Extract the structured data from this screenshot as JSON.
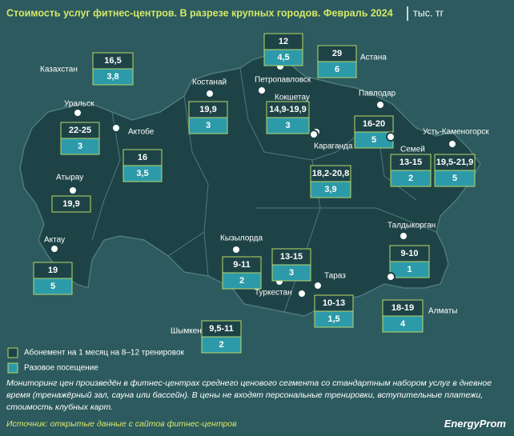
{
  "title": "Стоимость услуг фитнес-центров. В разрезе крупных городов. Февраль 2024",
  "unit": "тыс. тг",
  "cities": [
    {
      "name": "Казахстан",
      "monthly": "16,5",
      "single": "3,8"
    },
    {
      "name": "Петропавловск",
      "monthly": "12",
      "single": "4,5"
    },
    {
      "name": "Астана",
      "monthly": "29",
      "single": "6"
    },
    {
      "name": "Костанай",
      "monthly": "19,9",
      "single": "3"
    },
    {
      "name": "Кокшетау",
      "monthly": "14,9-19,9",
      "single": "3"
    },
    {
      "name": "Павлодар",
      "monthly": "16-20",
      "single": "5"
    },
    {
      "name": "Уральск",
      "monthly": "22-25",
      "single": "3"
    },
    {
      "name": "Актобе",
      "monthly": "16",
      "single": "3,5"
    },
    {
      "name": "Караганда",
      "monthly": "18,2-20,8",
      "single": "3,9"
    },
    {
      "name": "Семей",
      "monthly": "13-15",
      "single": "2"
    },
    {
      "name": "Усть-Каменогорск",
      "monthly": "19,5-21,9",
      "single": "5"
    },
    {
      "name": "Атырау",
      "monthly": "19,9"
    },
    {
      "name": "Актау",
      "monthly": "19",
      "single": "5"
    },
    {
      "name": "Кызылорда",
      "monthly": "9-11",
      "single": "2"
    },
    {
      "name": "Туркестан",
      "monthly": "13-15",
      "single": "3"
    },
    {
      "name": "Тараз",
      "monthly": "10-13",
      "single": "1,5"
    },
    {
      "name": "Шымкент",
      "monthly": "9,5-11",
      "single": "2"
    },
    {
      "name": "Талдыкорган",
      "monthly": "9-10",
      "single": "1"
    },
    {
      "name": "Алматы",
      "monthly": "18-19",
      "single": "4"
    }
  ],
  "legend": [
    "Абонемент на 1 месяц на 8–12 тренировок",
    "Разовое посещение"
  ],
  "note": "Мониторинг цен произведён в фитнес-центрах среднего ценового сегмента со стандартным набором услуг в дневное время (тренажёрный зал, сауна или бассейн). В цены не входят персональные тренировки, вступительные платежи, стоимость клубных карт.",
  "source": "Источник: открытые данные с сайтов фитнес-центров",
  "logo": "EnergyProm"
}
